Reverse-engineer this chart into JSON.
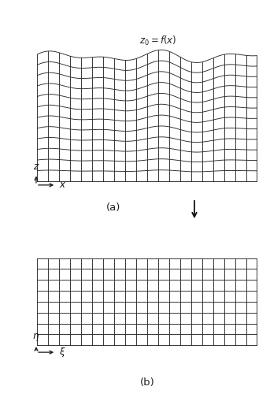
{
  "bg_color": "#ffffff",
  "line_color": "#2a2a2a",
  "axis_color": "#111111",
  "n_cols_wavy": 20,
  "n_rows_wavy": 13,
  "n_cols_flat": 20,
  "n_rows_flat": 8,
  "wave_amplitude": 0.055,
  "wave_freq1": 2.3,
  "wave_freq2": 3.7,
  "wave_phase2": 0.8,
  "label_a": "(a)",
  "label_b": "(b)",
  "top_label": "$z_0 = f(x)$",
  "x_label_top": "$x$",
  "z_label_top": "$z$",
  "xi_label": "$\\xi$",
  "eta_label": "$\\eta$"
}
